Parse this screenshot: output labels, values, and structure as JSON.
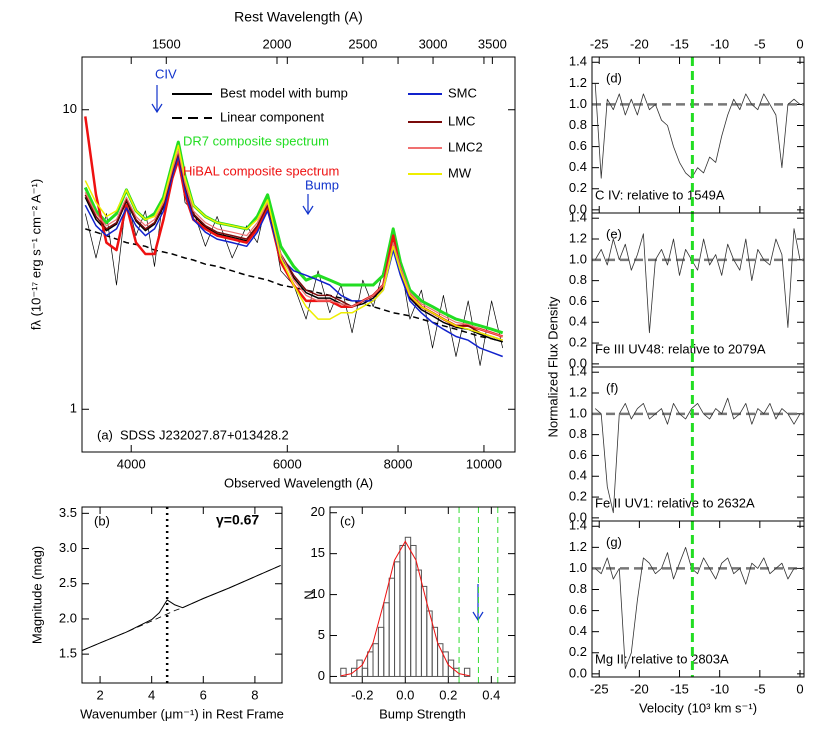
{
  "chart_data": [
    {
      "type": "line",
      "xscale": "log",
      "yscale": "log",
      "xlabel": "Observed Wavelength (A)",
      "x2label": "Rest Wavelength (A)",
      "ylabel": "fλ (10⁻¹⁷ erg s⁻¹ cm⁻² A⁻¹)",
      "label": "(a)",
      "annotations": [
        "SDSS J232027.87+013428.2",
        "CIV",
        "Bump"
      ],
      "xlim": [
        3520,
        10840
      ],
      "xticks": [
        4000,
        6000,
        8000,
        10000
      ],
      "x2lim": [
        1205,
        3712
      ],
      "x2ticks": [
        1500,
        2000,
        2500,
        3000,
        3500
      ],
      "ylim": [
        0.72,
        15
      ],
      "yticks": [
        1,
        10
      ],
      "x": [
        3550,
        3650,
        3750,
        3850,
        3950,
        4050,
        4150,
        4250,
        4350,
        4450,
        4520,
        4600,
        4700,
        4850,
        5000,
        5200,
        5400,
        5550,
        5700,
        5900,
        6100,
        6300,
        6500,
        6700,
        6900,
        7100,
        7300,
        7500,
        7700,
        7900,
        8050,
        8250,
        8500,
        8750,
        9000,
        9300,
        9600,
        9900,
        10200,
        10500
      ],
      "series": [
        {
          "color": "#000000",
          "width": 0.7,
          "values": [
            4.5,
            3.2,
            4.5,
            2.6,
            5.1,
            3.8,
            4.6,
            3.0,
            5.2,
            6.8,
            7.5,
            4.9,
            4.6,
            3.5,
            4.4,
            3.2,
            4.1,
            3.6,
            5.1,
            2.9,
            2.6,
            2.0,
            2.9,
            2.1,
            2.6,
            1.8,
            2.7,
            2.2,
            2.9,
            3.9,
            3.1,
            2.0,
            2.5,
            1.6,
            2.4,
            1.5,
            2.3,
            1.4,
            2.3,
            1.6
          ]
        },
        {
          "name": "Best model with bump",
          "color": "#000000",
          "width": 1.5,
          "values": [
            5.1,
            4.3,
            3.95,
            4.15,
            4.95,
            4.25,
            3.95,
            4.15,
            4.75,
            6.1,
            7.1,
            5.5,
            4.45,
            4.05,
            3.85,
            3.75,
            3.65,
            4.05,
            4.75,
            3.25,
            2.75,
            2.45,
            2.35,
            2.35,
            2.25,
            2.2,
            2.25,
            2.35,
            2.55,
            3.55,
            2.95,
            2.35,
            2.15,
            2.05,
            1.95,
            1.88,
            1.85,
            1.78,
            1.72,
            1.68
          ]
        },
        {
          "name": "Linear component",
          "color": "#000000",
          "width": 1.5,
          "dash": true,
          "values": [
            4.0,
            3.9,
            3.8,
            3.7,
            3.6,
            3.55,
            3.5,
            3.4,
            3.35,
            3.3,
            3.25,
            3.2,
            3.15,
            3.05,
            3.0,
            2.9,
            2.8,
            2.75,
            2.7,
            2.6,
            2.55,
            2.5,
            2.45,
            2.4,
            2.35,
            2.3,
            2.25,
            2.2,
            2.15,
            2.1,
            2.08,
            2.05,
            2.0,
            1.95,
            1.9,
            1.85,
            1.8,
            1.75,
            1.72,
            1.68
          ]
        },
        {
          "name": "DR7 composite spectrum",
          "color": "#22dd22",
          "width": 3,
          "values": [
            5.5,
            4.6,
            4.2,
            4.5,
            5.4,
            4.6,
            4.3,
            4.5,
            5.1,
            6.6,
            7.8,
            6.0,
            4.8,
            4.4,
            4.2,
            4.1,
            4.0,
            4.4,
            5.2,
            3.5,
            3.0,
            2.7,
            2.8,
            2.7,
            2.6,
            2.6,
            2.6,
            2.6,
            2.8,
            4.0,
            3.1,
            2.5,
            2.3,
            2.2,
            2.1,
            2.0,
            1.95,
            1.9,
            1.85,
            1.8
          ]
        },
        {
          "name": "HiBAL composite spectrum",
          "color": "#ee1111",
          "width": 2.5,
          "values": [
            9.5,
            5.2,
            3.6,
            3.4,
            4.8,
            3.6,
            3.3,
            3.3,
            4.3,
            5.9,
            6.8,
            5.2,
            4.3,
            4.0,
            3.8,
            3.7,
            3.6,
            4.0,
            4.7,
            3.1,
            2.6,
            2.3,
            2.3,
            2.3,
            2.2,
            2.2,
            2.3,
            2.4,
            2.6,
            3.8,
            2.9,
            2.4,
            2.2,
            2.1,
            2.0,
            1.9,
            1.9,
            1.85,
            1.8,
            1.75
          ]
        },
        {
          "name": "SMC",
          "color": "#1122cc",
          "width": 1.5,
          "values": [
            4.8,
            4.1,
            3.8,
            4.0,
            4.7,
            4.1,
            3.8,
            4.0,
            4.6,
            6.0,
            7.0,
            5.4,
            4.3,
            3.9,
            3.7,
            3.6,
            3.5,
            3.9,
            4.6,
            3.2,
            2.9,
            2.8,
            2.7,
            2.6,
            2.4,
            2.3,
            2.3,
            2.3,
            2.5,
            3.4,
            2.8,
            2.3,
            2.1,
            1.95,
            1.85,
            1.75,
            1.7,
            1.6,
            1.55,
            1.5
          ]
        },
        {
          "name": "LMC",
          "color": "#7a0a0a",
          "width": 1.5,
          "values": [
            5.2,
            4.4,
            4.0,
            4.2,
            5.0,
            4.3,
            4.0,
            4.2,
            4.8,
            6.2,
            7.2,
            5.6,
            4.5,
            4.1,
            3.9,
            3.8,
            3.7,
            4.1,
            4.8,
            3.3,
            2.8,
            2.5,
            2.4,
            2.4,
            2.3,
            2.2,
            2.3,
            2.4,
            2.6,
            3.6,
            3.0,
            2.4,
            2.2,
            2.1,
            2.0,
            1.9,
            1.9,
            1.8,
            1.75,
            1.7
          ]
        },
        {
          "name": "LMC2",
          "color": "#f07070",
          "width": 1.2,
          "values": [
            5.3,
            4.5,
            4.1,
            4.3,
            5.1,
            4.4,
            4.1,
            4.3,
            4.9,
            6.3,
            7.3,
            5.7,
            4.6,
            4.2,
            4.0,
            3.9,
            3.8,
            4.2,
            4.9,
            3.3,
            2.7,
            2.4,
            2.3,
            2.3,
            2.25,
            2.2,
            2.3,
            2.4,
            2.6,
            3.6,
            3.0,
            2.45,
            2.25,
            2.15,
            2.05,
            1.95,
            1.92,
            1.85,
            1.8,
            1.75
          ]
        },
        {
          "name": "MW",
          "color": "#eeee00",
          "width": 1.5,
          "values": [
            5.8,
            4.9,
            4.4,
            4.6,
            5.4,
            4.6,
            4.3,
            4.4,
            5.0,
            6.5,
            7.6,
            5.9,
            4.8,
            4.4,
            4.2,
            4.1,
            4.0,
            4.3,
            5.0,
            3.2,
            2.6,
            2.2,
            2.0,
            2.0,
            2.1,
            2.1,
            2.2,
            2.3,
            2.5,
            3.5,
            2.9,
            2.4,
            2.2,
            2.1,
            2.0,
            1.9,
            1.85,
            1.8,
            1.75,
            1.7
          ]
        }
      ]
    },
    {
      "type": "line",
      "xlabel": "Wavenumber (μm⁻¹) in Rest Frame",
      "ylabel": "Magnitude (mag)",
      "label": "(b)",
      "annotations": [
        "γ=0.67"
      ],
      "xlim": [
        1.3,
        9.05
      ],
      "xticks": [
        2,
        4,
        6,
        8
      ],
      "ylim": [
        1.09,
        3.59
      ],
      "yticks": [
        1.5,
        {
          "value": 2,
          "label": "2.0"
        },
        2.5,
        {
          "value": 3,
          "label": "3.0"
        },
        3.5
      ],
      "vline": 4.6,
      "x": [
        1.3,
        2,
        3,
        4,
        4.3,
        4.6,
        4.9,
        5.2,
        6,
        7,
        8,
        9
      ],
      "series": [
        {
          "color": "#000000",
          "width": 1,
          "values": [
            1.55,
            1.66,
            1.81,
            1.99,
            2.09,
            2.27,
            2.2,
            2.16,
            2.29,
            2.44,
            2.6,
            2.76
          ]
        },
        {
          "color": "#000000",
          "width": 0.8,
          "dash": true,
          "values": [
            1.55,
            1.66,
            1.81,
            1.97,
            2.02,
            2.07,
            2.12,
            2.16,
            2.29,
            2.44,
            2.6,
            2.76
          ]
        }
      ]
    },
    {
      "type": "histogram",
      "xlabel": "Bump Strength",
      "ylabel": "N",
      "label": "(c)",
      "xlim": [
        -0.35,
        0.51
      ],
      "xticks": [
        -0.2,
        {
          "value": 0,
          "label": "0.0"
        },
        0.2,
        0.4
      ],
      "ylim": [
        -0.8,
        20.7
      ],
      "yticks": [
        0,
        5,
        10,
        15,
        20
      ],
      "bins": [
        -0.3,
        -0.275,
        -0.25,
        -0.225,
        -0.2,
        -0.175,
        -0.15,
        -0.125,
        -0.1,
        -0.075,
        -0.05,
        -0.025,
        0,
        0.025,
        0.05,
        0.075,
        0.1,
        0.125,
        0.15,
        0.175,
        0.2,
        0.225,
        0.25,
        0.275,
        0.3
      ],
      "counts": [
        1,
        0,
        1,
        2,
        1,
        3,
        4,
        6,
        9,
        12,
        14,
        16,
        17,
        16,
        13,
        11,
        8,
        6,
        4,
        3,
        2,
        1,
        0,
        1
      ],
      "color": "#555555",
      "fit": {
        "color": "#ee1111",
        "x": [
          -0.3,
          -0.25,
          -0.2,
          -0.15,
          -0.1,
          -0.05,
          0,
          0.05,
          0.1,
          0.15,
          0.2,
          0.25,
          0.3
        ],
        "values": [
          0.07,
          0.35,
          1.4,
          4.1,
          9.0,
          14.2,
          16.5,
          14.2,
          9.0,
          4.1,
          1.4,
          0.35,
          0.07
        ]
      },
      "vlines": [
        0.25,
        0.34,
        0.43
      ],
      "vline_color": "#33dd33"
    },
    {
      "type": "line",
      "label": "(d)",
      "title": "C IV: relative to 1549A",
      "xtick_side": "top",
      "xlim": [
        -25.9,
        0.5
      ],
      "xticks": [
        -25,
        -20,
        -15,
        -10,
        -5,
        0
      ],
      "ylim": [
        -0.03,
        1.45
      ],
      "yticks": [
        {
          "value": 0,
          "label": "0.0"
        },
        0.2,
        0.4,
        0.6,
        0.8,
        {
          "value": 1,
          "label": "1.0"
        },
        1.2,
        1.4
      ],
      "reference_y": 1,
      "vline": -13.4,
      "vline_color": "#22dd22",
      "x": [
        -25.5,
        -24.75,
        -24,
        -23.25,
        -22.5,
        -21.75,
        -21,
        -20.25,
        -19.5,
        -18.75,
        -18,
        -17.25,
        -16.5,
        -15.75,
        -15,
        -14.25,
        -13.5,
        -12.75,
        -12,
        -11.25,
        -10.5,
        -9.75,
        -9,
        -8.25,
        -7.5,
        -6.75,
        -6,
        -5.25,
        -4.5,
        -3.75,
        -3,
        -2.25,
        -1.5,
        -0.75,
        0
      ],
      "series": [
        {
          "color": "#333333",
          "width": 0.8,
          "values": [
            1.2,
            0.3,
            1.05,
            0.95,
            1.1,
            0.9,
            1.05,
            0.9,
            1.1,
            0.95,
            1.0,
            0.85,
            0.8,
            0.6,
            0.45,
            0.35,
            0.3,
            0.4,
            0.35,
            0.5,
            0.45,
            0.7,
            0.9,
            1.05,
            0.95,
            1.1,
            1.0,
            0.95,
            1.1,
            1.0,
            0.9,
            0.4,
            1.0,
            1.05,
            1.0
          ]
        }
      ]
    },
    {
      "type": "line",
      "label": "(e)",
      "title": "Fe III UV48: relative to 2079A",
      "ylabel": "Normalized Flux Density",
      "xlim": [
        -25.9,
        0.5
      ],
      "ylim": [
        -0.03,
        1.45
      ],
      "yticks": [
        {
          "value": 0,
          "label": "0.0"
        },
        0.2,
        0.4,
        0.6,
        0.8,
        {
          "value": 1,
          "label": "1.0"
        },
        1.2,
        1.4
      ],
      "reference_y": 1,
      "vline": -13.4,
      "vline_color": "#22dd22",
      "x": [
        -25.5,
        -24.75,
        -24,
        -23.25,
        -22.5,
        -21.75,
        -21,
        -20.25,
        -19.5,
        -18.75,
        -18,
        -17.25,
        -16.5,
        -15.75,
        -15,
        -14.25,
        -13.5,
        -12.75,
        -12,
        -11.25,
        -10.5,
        -9.75,
        -9,
        -8.25,
        -7.5,
        -6.75,
        -6,
        -5.25,
        -4.5,
        -3.75,
        -3,
        -2.25,
        -1.5,
        -0.75,
        0
      ],
      "series": [
        {
          "color": "#333333",
          "width": 0.8,
          "values": [
            1.0,
            1.1,
            0.95,
            1.2,
            1.0,
            1.15,
            0.9,
            1.05,
            1.25,
            0.3,
            1.0,
            1.1,
            0.95,
            1.2,
            0.85,
            1.1,
            1.0,
            0.9,
            1.2,
            0.95,
            1.05,
            0.85,
            1.15,
            1.0,
            0.9,
            1.2,
            0.8,
            1.1,
            1.0,
            0.95,
            1.2,
            1.05,
            0.35,
            1.3,
            1.0
          ]
        }
      ]
    },
    {
      "type": "line",
      "label": "(f)",
      "title": "Fe II UV1: relative to 2632A",
      "xlim": [
        -25.9,
        0.5
      ],
      "ylim": [
        -0.03,
        1.45
      ],
      "yticks": [
        {
          "value": 0,
          "label": "0.0"
        },
        0.2,
        0.4,
        0.6,
        0.8,
        {
          "value": 1,
          "label": "1.0"
        },
        1.2,
        1.4
      ],
      "reference_y": 1,
      "vline": -13.4,
      "vline_color": "#22dd22",
      "x": [
        -25.5,
        -24.75,
        -24,
        -23.25,
        -22.5,
        -21.75,
        -21,
        -20.25,
        -19.5,
        -18.75,
        -18,
        -17.25,
        -16.5,
        -15.75,
        -15,
        -14.25,
        -13.5,
        -12.75,
        -12,
        -11.25,
        -10.5,
        -9.75,
        -9,
        -8.25,
        -7.5,
        -6.75,
        -6,
        -5.25,
        -4.5,
        -3.75,
        -3,
        -2.25,
        -1.5,
        -0.75,
        0
      ],
      "series": [
        {
          "color": "#333333",
          "width": 0.8,
          "values": [
            1.05,
            1.0,
            0.3,
            0.05,
            1.0,
            1.1,
            0.95,
            1.05,
            1.1,
            0.95,
            1.0,
            1.05,
            0.9,
            1.1,
            1.0,
            0.95,
            1.05,
            1.1,
            1.0,
            0.95,
            1.05,
            1.0,
            1.15,
            0.95,
            1.0,
            1.1,
            0.9,
            1.05,
            1.0,
            1.1,
            0.95,
            1.05,
            1.0,
            0.9,
            1.0
          ]
        }
      ]
    },
    {
      "type": "line",
      "label": "(g)",
      "title": "Mg II: relative to 2803A",
      "xlabel": "Velocity (10³ km s⁻¹)",
      "xlim": [
        -25.9,
        0.5
      ],
      "xticks": [
        -25,
        -20,
        -15,
        -10,
        -5,
        0
      ],
      "ylim": [
        -0.03,
        1.45
      ],
      "yticks": [
        {
          "value": 0,
          "label": "0.0"
        },
        0.2,
        0.4,
        0.6,
        0.8,
        {
          "value": 1,
          "label": "1.0"
        },
        1.2,
        1.4
      ],
      "reference_y": 1,
      "vline": -13.4,
      "vline_color": "#22dd22",
      "x": [
        -25.5,
        -24.75,
        -24,
        -23.25,
        -22.5,
        -21.75,
        -21,
        -20.25,
        -19.5,
        -18.75,
        -18,
        -17.25,
        -16.5,
        -15.75,
        -15,
        -14.25,
        -13.5,
        -12.75,
        -12,
        -11.25,
        -10.5,
        -9.75,
        -9,
        -8.25,
        -7.5,
        -6.75,
        -6,
        -5.25,
        -4.5,
        -3.75,
        -3,
        -2.25,
        -1.5,
        -0.75,
        0
      ],
      "series": [
        {
          "color": "#333333",
          "width": 0.8,
          "values": [
            1.0,
            0.95,
            1.1,
            0.9,
            1.0,
            0.05,
            0.2,
            0.7,
            1.1,
            1.05,
            0.95,
            1.0,
            1.15,
            0.9,
            1.05,
            1.2,
            1.0,
            0.95,
            1.1,
            1.0,
            0.9,
            1.05,
            1.1,
            0.95,
            1.0,
            0.85,
            1.05,
            1.0,
            1.1,
            0.95,
            1.0,
            1.05,
            0.9,
            1.0,
            1.0
          ]
        }
      ]
    }
  ]
}
